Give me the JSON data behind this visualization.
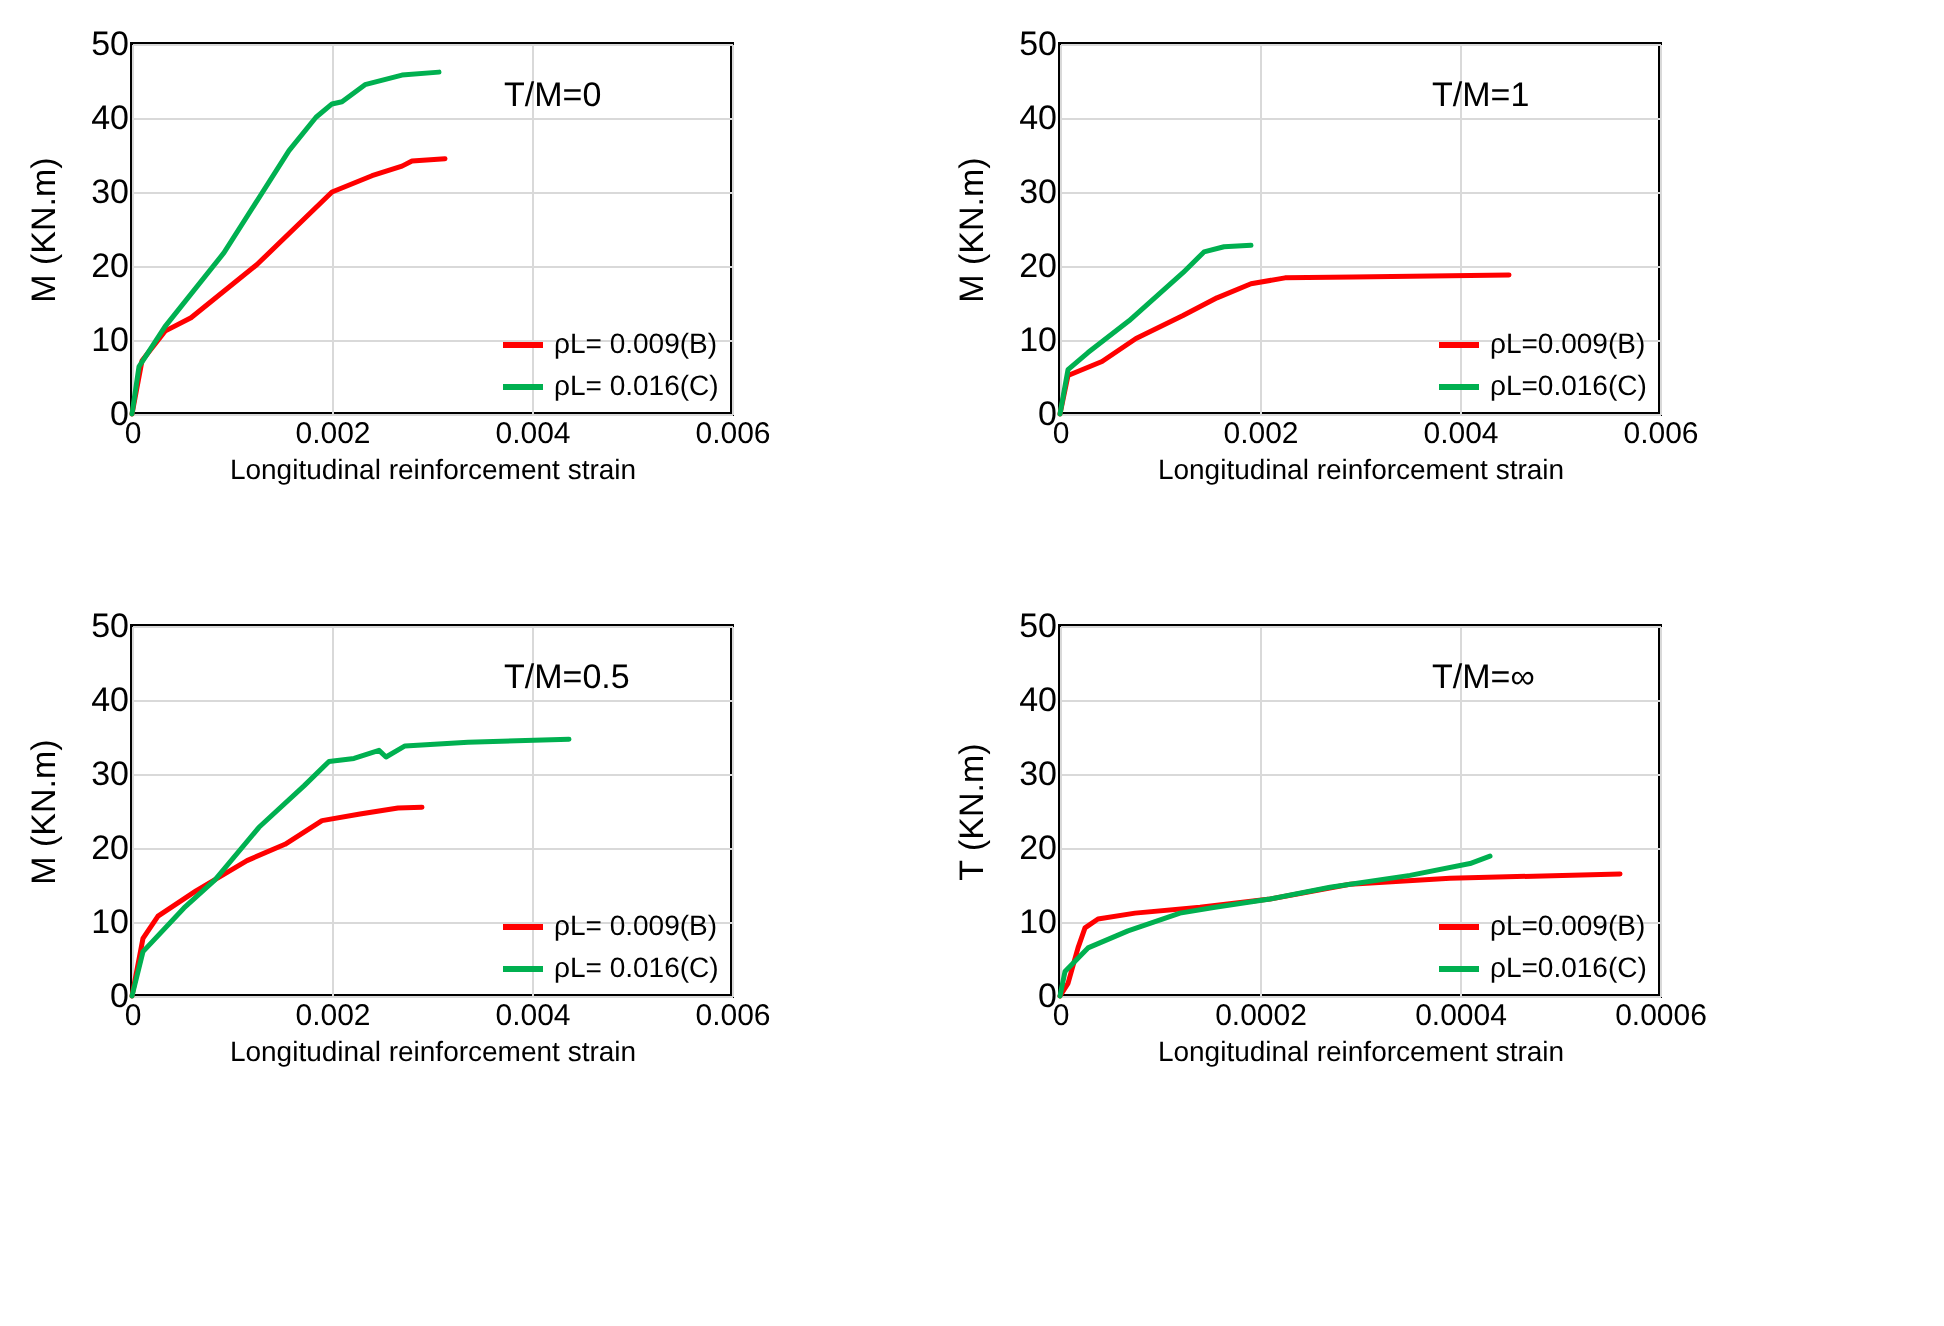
{
  "chart_data": [
    {
      "type": "line",
      "xlabel": "Longitudinal reinforcement  strain",
      "ylabel": "M (KN.m)",
      "annotations": [
        "T/M=0"
      ],
      "xlim": [
        0,
        0.006
      ],
      "ylim": [
        0,
        50
      ],
      "xticks": [
        0,
        0.002,
        0.004,
        0.006
      ],
      "yticks": [
        0,
        10,
        20,
        30,
        40,
        50
      ],
      "grid": true,
      "legend": "bottom right",
      "marker": "none",
      "line_style": "solid",
      "series": [
        {
          "name": "ρL= 0.009(B)",
          "color": "#ff0000",
          "x": [
            0,
            0.0001,
            0.00033,
            0.00059,
            0.00125,
            0.002,
            0.0024,
            0.0027,
            0.0028,
            0.00313
          ],
          "values": [
            0,
            7.2,
            11.2,
            13,
            20.2,
            30,
            32.2,
            33.5,
            34.2,
            34.5
          ]
        },
        {
          "name": "ρL= 0.016(C)",
          "color": "#00b050",
          "x": [
            0,
            7e-05,
            0.00033,
            0.00092,
            0.00157,
            0.00184,
            0.002,
            0.0021,
            0.00233,
            0.0027,
            0.00307
          ],
          "values": [
            0,
            6.4,
            11.8,
            21.8,
            35.6,
            40.1,
            41.9,
            42.2,
            44.5,
            45.8,
            46.2
          ]
        }
      ]
    },
    {
      "type": "line",
      "xlabel": "Longitudinal reinforcement  strain",
      "ylabel": "M (KN.m)",
      "annotations": [
        "T/M=1"
      ],
      "xlim": [
        0,
        0.006
      ],
      "ylim": [
        0,
        50
      ],
      "xticks": [
        0,
        0.002,
        0.004,
        0.006
      ],
      "yticks": [
        0,
        10,
        20,
        30,
        40,
        50
      ],
      "grid": true,
      "legend": "bottom right",
      "marker": "none",
      "line_style": "solid",
      "series": [
        {
          "name": "ρL=0.009(B)",
          "color": "#ff0000",
          "x": [
            0,
            8e-05,
            0.00042,
            0.00076,
            0.00123,
            0.00157,
            0.00191,
            0.00225,
            0.00293,
            0.00449
          ],
          "values": [
            0,
            5.2,
            7.1,
            10.2,
            13.3,
            15.7,
            17.6,
            18.4,
            18.5,
            18.8
          ]
        },
        {
          "name": "ρL=0.016(C)",
          "color": "#00b050",
          "x": [
            0,
            8e-05,
            0.00028,
            0.00069,
            0.00123,
            0.00144,
            0.00164,
            0.00191
          ],
          "values": [
            0,
            6,
            8.3,
            12.6,
            19.1,
            21.9,
            22.6,
            22.8
          ]
        }
      ]
    },
    {
      "type": "line",
      "xlabel": "Longitudinal reinforcement  strain",
      "ylabel": "M (KN.m)",
      "annotations": [
        "T/M=0.5"
      ],
      "xlim": [
        0,
        0.006
      ],
      "ylim": [
        0,
        50
      ],
      "xticks": [
        0,
        0.002,
        0.004,
        0.006
      ],
      "yticks": [
        0,
        10,
        20,
        30,
        40,
        50
      ],
      "grid": true,
      "legend": "bottom right",
      "marker": "none",
      "line_style": "solid",
      "series": [
        {
          "name": "ρL= 0.009(B)",
          "color": "#ff0000",
          "x": [
            0,
            0.00011,
            0.00026,
            0.00064,
            0.00115,
            0.00153,
            0.0019,
            0.00228,
            0.00266,
            0.0029
          ],
          "values": [
            0,
            7.8,
            10.8,
            14.2,
            18.3,
            20.5,
            23.7,
            24.6,
            25.4,
            25.5
          ]
        },
        {
          "name": "ρL= 0.016(C)",
          "color": "#00b050",
          "x": [
            0,
            0.00011,
            0.00052,
            0.00083,
            0.00127,
            0.00172,
            0.00197,
            0.00222,
            0.00247,
            0.00254,
            0.00273,
            0.00336,
            0.00437
          ],
          "values": [
            0,
            6,
            11.9,
            15.7,
            22.8,
            28.4,
            31.7,
            32.1,
            33.2,
            32.3,
            33.8,
            34.3,
            34.7
          ]
        }
      ]
    },
    {
      "type": "line",
      "xlabel": "Longitudinal reinforcement  strain",
      "ylabel": "T (KN.m)",
      "annotations": [
        "T/M=∞"
      ],
      "xlim": [
        0,
        0.0006
      ],
      "ylim": [
        0,
        50
      ],
      "xticks": [
        0,
        0.0002,
        0.0004,
        0.0006
      ],
      "yticks": [
        0,
        10,
        20,
        30,
        40,
        50
      ],
      "grid": true,
      "legend": "bottom right",
      "marker": "none",
      "line_style": "solid",
      "series": [
        {
          "name": "ρL=0.009(B)",
          "color": "#ff0000",
          "x": [
            0,
            8e-06,
            1.8e-05,
            2.5e-05,
            3.8e-05,
            7.5e-05,
            0.00014,
            0.00021,
            0.00029,
            0.00039,
            0.00056
          ],
          "values": [
            0,
            1.7,
            6.5,
            9.2,
            10.4,
            11.2,
            12,
            13.1,
            15.1,
            15.9,
            16.5
          ]
        },
        {
          "name": "ρL=0.016(C)",
          "color": "#00b050",
          "x": [
            0,
            5e-06,
            2.8e-05,
            6.8e-05,
            0.00012,
            0.000155,
            0.00021,
            0.00027,
            0.00035,
            0.00041,
            0.00043
          ],
          "values": [
            0,
            3.3,
            6.5,
            8.8,
            11.2,
            12,
            13.1,
            14.7,
            16.3,
            17.9,
            18.9
          ]
        }
      ]
    }
  ]
}
